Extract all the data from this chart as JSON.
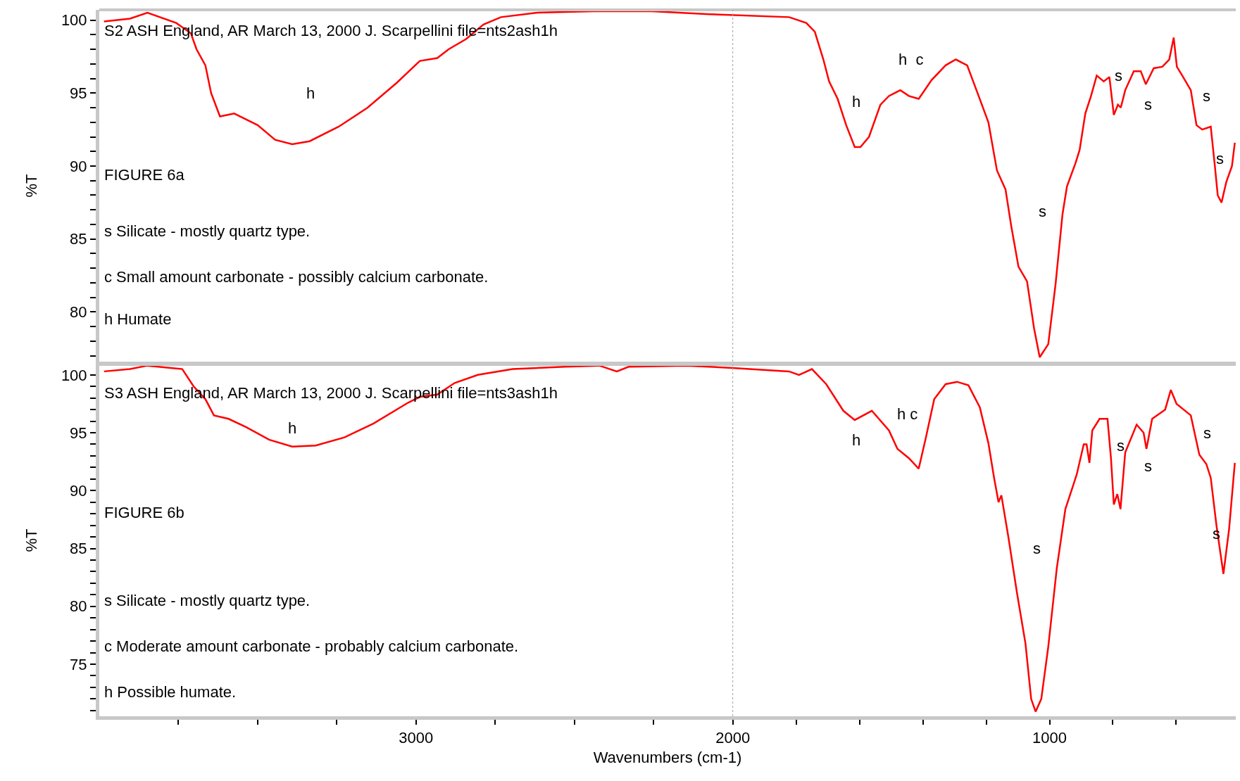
{
  "chart_data": [
    {
      "type": "line",
      "ylabel": "%T",
      "tick_labels": "y",
      "marker": "none",
      "line_style": "solid",
      "xlim": [
        4000,
        412
      ],
      "ylim": [
        76.6,
        100.7
      ],
      "yticks": [
        {
          "value": 77,
          "label": null
        },
        {
          "value": 78,
          "label": null
        },
        {
          "value": 79,
          "label": null
        },
        80,
        {
          "value": 81,
          "label": null
        },
        {
          "value": 82,
          "label": null
        },
        {
          "value": 83,
          "label": null
        },
        {
          "value": 84,
          "label": null
        },
        85,
        {
          "value": 86,
          "label": null
        },
        {
          "value": 87,
          "label": null
        },
        {
          "value": 88,
          "label": null
        },
        {
          "value": 89,
          "label": null
        },
        90,
        {
          "value": 91,
          "label": null
        },
        {
          "value": 92,
          "label": null
        },
        {
          "value": 93,
          "label": null
        },
        {
          "value": 94,
          "label": null
        },
        95,
        {
          "value": 96,
          "label": null
        },
        {
          "value": 97,
          "label": null
        },
        {
          "value": 98,
          "label": null
        },
        {
          "value": 99,
          "label": null
        },
        100
      ],
      "ref_lines": [
        {
          "axis": "x",
          "value": 2000,
          "color": "#a0a0a0",
          "line_style": "dotted"
        }
      ],
      "series": [
        {
          "color": "#ff0000",
          "x": [
            3985,
            3903,
            3848,
            3757,
            3711,
            3693,
            3665,
            3647,
            3619,
            3574,
            3500,
            3445,
            3391,
            3336,
            3244,
            3153,
            3061,
            2988,
            2933,
            2897,
            2842,
            2787,
            2732,
            2622,
            2439,
            2256,
            2073,
            1822,
            1768,
            1741,
            1714,
            1696,
            1669,
            1642,
            1615,
            1597,
            1570,
            1534,
            1507,
            1471,
            1444,
            1413,
            1372,
            1328,
            1296,
            1260,
            1229,
            1193,
            1166,
            1139,
            1121,
            1098,
            1071,
            1049,
            1031,
            1004,
            981,
            959,
            945,
            918,
            905,
            887,
            869,
            851,
            829,
            811,
            797,
            784,
            775,
            761,
            734,
            712,
            696,
            671,
            644,
            622,
            608,
            598,
            581,
            554,
            536,
            518,
            491,
            478,
            469,
            457,
            442,
            424,
            415
          ],
          "values": [
            99.9,
            100.1,
            100.5,
            99.8,
            99.1,
            98.0,
            96.9,
            95.0,
            93.4,
            93.6,
            92.8,
            91.8,
            91.5,
            91.7,
            92.7,
            94.0,
            95.7,
            97.2,
            97.4,
            98.0,
            98.7,
            99.7,
            100.2,
            100.5,
            100.6,
            100.6,
            100.4,
            100.2,
            99.8,
            99.2,
            97.3,
            95.8,
            94.6,
            92.8,
            91.3,
            91.3,
            92.0,
            94.2,
            94.8,
            95.2,
            94.8,
            94.6,
            95.9,
            96.9,
            97.3,
            96.9,
            95.1,
            93.0,
            89.7,
            88.4,
            85.9,
            83.1,
            82.1,
            78.9,
            76.9,
            77.8,
            81.9,
            86.7,
            88.6,
            90.2,
            91.1,
            93.6,
            94.8,
            96.2,
            95.8,
            96.1,
            93.5,
            94.2,
            94.0,
            95.2,
            96.5,
            96.5,
            95.6,
            96.7,
            96.8,
            97.3,
            98.8,
            96.8,
            96.2,
            95.2,
            92.8,
            92.5,
            92.7,
            90.0,
            88.0,
            87.5,
            88.9,
            90.0,
            91.6
          ]
        }
      ],
      "annotations": [
        "S2 ASH England, AR March 13, 2000 J. Scarpellini file=nts2ash1h",
        "FIGURE 6a",
        "s Silicate - mostly quartz type.",
        "c Small amount carbonate - possibly calcium carbonate.",
        "h Humate",
        "h",
        "h",
        "h  c",
        "s",
        "s",
        "s",
        "s",
        "s"
      ]
    },
    {
      "type": "line",
      "ylabel": "%T",
      "xlabel": "Wavenumbers (cm-1)",
      "marker": "none",
      "line_style": "solid",
      "xlim": [
        4000,
        412
      ],
      "ylim": [
        70.5,
        100.9
      ],
      "xticks": [
        {
          "value": 3750,
          "label": null
        },
        {
          "value": 3500,
          "label": null
        },
        {
          "value": 3250,
          "label": null
        },
        3000,
        {
          "value": 2750,
          "label": null
        },
        {
          "value": 2500,
          "label": null
        },
        {
          "value": 2250,
          "label": null
        },
        2000,
        {
          "value": 1800,
          "label": null
        },
        {
          "value": 1600,
          "label": null
        },
        {
          "value": 1400,
          "label": null
        },
        {
          "value": 1200,
          "label": null
        },
        1000,
        {
          "value": 800,
          "label": null
        },
        {
          "value": 600,
          "label": null
        }
      ],
      "yticks": [
        {
          "value": 71,
          "label": null
        },
        {
          "value": 72,
          "label": null
        },
        {
          "value": 73,
          "label": null
        },
        {
          "value": 74,
          "label": null
        },
        75,
        {
          "value": 76,
          "label": null
        },
        {
          "value": 77,
          "label": null
        },
        {
          "value": 78,
          "label": null
        },
        {
          "value": 79,
          "label": null
        },
        80,
        {
          "value": 81,
          "label": null
        },
        {
          "value": 82,
          "label": null
        },
        {
          "value": 83,
          "label": null
        },
        {
          "value": 84,
          "label": null
        },
        85,
        {
          "value": 86,
          "label": null
        },
        {
          "value": 87,
          "label": null
        },
        {
          "value": 88,
          "label": null
        },
        {
          "value": 89,
          "label": null
        },
        90,
        {
          "value": 91,
          "label": null
        },
        {
          "value": 92,
          "label": null
        },
        {
          "value": 93,
          "label": null
        },
        {
          "value": 94,
          "label": null
        },
        95,
        {
          "value": 96,
          "label": null
        },
        {
          "value": 97,
          "label": null
        },
        {
          "value": 98,
          "label": null
        },
        {
          "value": 99,
          "label": null
        },
        100
      ],
      "ref_lines": [
        {
          "axis": "x",
          "value": 2000,
          "color": "#a0a0a0",
          "line_style": "dotted"
        }
      ],
      "series": [
        {
          "color": "#ff0000",
          "x": [
            3985,
            3903,
            3848,
            3738,
            3702,
            3665,
            3638,
            3592,
            3537,
            3464,
            3391,
            3317,
            3226,
            3134,
            3025,
            2988,
            2933,
            2878,
            2805,
            2695,
            2531,
            2421,
            2366,
            2329,
            2146,
            2000,
            1822,
            1791,
            1750,
            1705,
            1651,
            1615,
            1561,
            1507,
            1480,
            1444,
            1413,
            1391,
            1364,
            1328,
            1292,
            1256,
            1220,
            1193,
            1175,
            1161,
            1152,
            1130,
            1103,
            1076,
            1058,
            1044,
            1026,
            1004,
            977,
            950,
            914,
            892,
            883,
            874,
            865,
            842,
            817,
            806,
            797,
            786,
            776,
            761,
            725,
            703,
            694,
            676,
            635,
            617,
            599,
            554,
            527,
            505,
            491,
            473,
            451,
            433,
            415
          ],
          "values": [
            100.3,
            100.5,
            100.8,
            100.5,
            99.0,
            97.9,
            96.5,
            96.2,
            95.5,
            94.4,
            93.8,
            93.9,
            94.6,
            95.8,
            97.6,
            98.1,
            98.3,
            99.3,
            100.0,
            100.5,
            100.7,
            100.8,
            100.3,
            100.7,
            100.8,
            100.6,
            100.3,
            100.0,
            100.5,
            99.2,
            96.9,
            96.1,
            96.9,
            95.2,
            93.6,
            92.8,
            91.9,
            94.5,
            97.9,
            99.2,
            99.4,
            99.1,
            97.2,
            94.1,
            91.1,
            89.0,
            89.6,
            86.0,
            81.2,
            76.8,
            72.0,
            70.9,
            72.0,
            76.5,
            83.3,
            88.4,
            91.4,
            94.0,
            94.0,
            92.4,
            95.2,
            96.2,
            96.2,
            92.8,
            88.8,
            89.7,
            88.4,
            93.3,
            95.7,
            95.0,
            93.6,
            96.2,
            97.0,
            98.7,
            97.5,
            96.5,
            93.1,
            92.3,
            91.1,
            87.0,
            82.8,
            86.7,
            92.4
          ]
        }
      ],
      "annotations": [
        "S3 ASH England, AR March 13, 2000 J. Scarpellini file=nts3ash1h",
        "FIGURE 6b",
        "s Silicate - mostly quartz type.",
        "c Moderate amount carbonate - probably calcium carbonate.",
        "h Possible humate.",
        "h",
        "h",
        "h c",
        "s",
        "s",
        "s",
        "s",
        "s"
      ]
    }
  ]
}
